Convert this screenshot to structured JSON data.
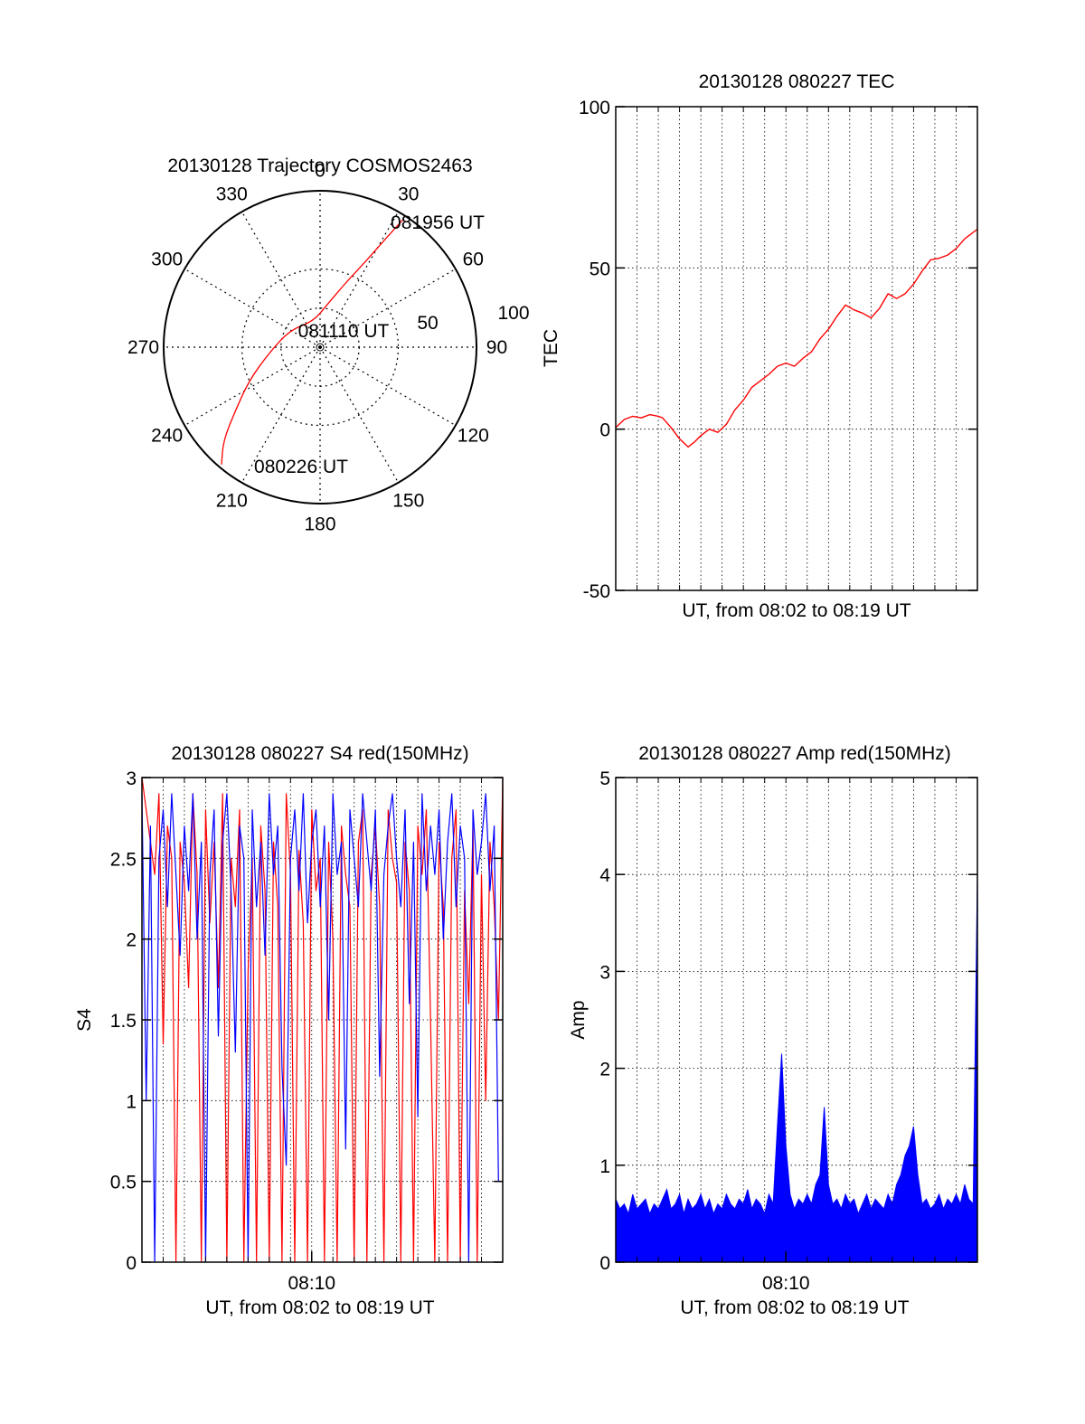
{
  "colors": {
    "red": "#ff0000",
    "blue": "#0000ff",
    "axis": "#000000",
    "grid": "#000000"
  },
  "chart_data": [
    {
      "id": "polar",
      "type": "scatter",
      "projection": "polar",
      "title": "20130128 Trajectory COSMOS2463",
      "azimuth_labels": [
        "0",
        "30",
        "60",
        "90",
        "120",
        "150",
        "180",
        "210",
        "240",
        "270",
        "300",
        "330"
      ],
      "radial_labels": [
        "50",
        "100"
      ],
      "series": [
        {
          "color": "#ff0000",
          "points": [
            {
              "az": 33,
              "r": 97
            },
            {
              "az": 31,
              "r": 80
            },
            {
              "az": 28,
              "r": 62
            },
            {
              "az": 22,
              "r": 45
            },
            {
              "az": 10,
              "r": 28
            },
            {
              "az": 345,
              "r": 17
            },
            {
              "az": 300,
              "r": 22
            },
            {
              "az": 265,
              "r": 32
            },
            {
              "az": 245,
              "r": 50
            },
            {
              "az": 233,
              "r": 68
            },
            {
              "az": 226,
              "r": 86
            },
            {
              "az": 220,
              "r": 98
            }
          ]
        }
      ],
      "annotations": [
        {
          "text": "081956 UT",
          "az": 35,
          "r": 92
        },
        {
          "text": "081110 UT",
          "az": 30,
          "r": 25
        },
        {
          "text": "080226 UT",
          "az": 210,
          "r": 84
        }
      ],
      "grid": true
    },
    {
      "id": "tec",
      "type": "line",
      "title": "20130128 080227 TEC",
      "xlabel": "UT, from 08:02 to 08:19 UT",
      "ylabel": "TEC",
      "xlim": [
        0,
        17
      ],
      "ylim": [
        -50,
        100
      ],
      "yticks": [
        "-50",
        "0",
        "50",
        "100"
      ],
      "grid": true,
      "series": [
        {
          "color": "#ff0000",
          "x": [
            0,
            0.4,
            0.8,
            1.2,
            1.6,
            2.0,
            2.2,
            2.6,
            3.0,
            3.4,
            3.7,
            4.0,
            4.4,
            4.8,
            5.2,
            5.6,
            6.0,
            6.4,
            6.8,
            7.2,
            7.6,
            8.0,
            8.4,
            8.8,
            9.2,
            9.6,
            10.0,
            10.4,
            10.8,
            11.2,
            11.6,
            12.0,
            12.4,
            12.8,
            13.2,
            13.6,
            14.0,
            14.4,
            14.8,
            15.2,
            15.6,
            16.0,
            16.4,
            17.0
          ],
          "y": [
            0.5,
            3,
            4,
            3.5,
            4.5,
            4,
            3.5,
            0.5,
            -3,
            -5.5,
            -4,
            -2,
            0,
            -1,
            1.5,
            6,
            9,
            13,
            15,
            17,
            19.5,
            20.5,
            19.5,
            22,
            24,
            28,
            31,
            35,
            38.5,
            37,
            36,
            34.5,
            37.5,
            42,
            40.5,
            42,
            45,
            49,
            52.5,
            53,
            54,
            56,
            59,
            62
          ]
        }
      ]
    },
    {
      "id": "s4",
      "type": "line",
      "title": "20130128 080227 S4 red(150MHz)",
      "xlabel": "UT, from 08:02 to 08:19 UT",
      "ylabel": "S4",
      "xlim": [
        0,
        17
      ],
      "ylim": [
        0,
        3
      ],
      "xticks": [
        "08:10"
      ],
      "yticks": [
        "0",
        "0.5",
        "1",
        "1.5",
        "2",
        "2.5",
        "3"
      ],
      "grid": true,
      "series": [
        {
          "color": "#ff0000",
          "x": [
            0.0,
            0.2,
            0.4,
            0.6,
            0.8,
            1.0,
            1.2,
            1.4,
            1.6,
            1.8,
            2.0,
            2.2,
            2.4,
            2.6,
            2.8,
            3.0,
            3.2,
            3.4,
            3.6,
            3.8,
            4.0,
            4.2,
            4.4,
            4.6,
            4.8,
            5.0,
            5.2,
            5.4,
            5.6,
            5.8,
            6.0,
            6.2,
            6.4,
            6.6,
            6.8,
            7.0,
            7.2,
            7.4,
            7.6,
            7.8,
            8.0,
            8.2,
            8.4,
            8.6,
            8.8,
            9.0,
            9.2,
            9.4,
            9.6,
            9.8,
            10.0,
            10.2,
            10.4,
            10.6,
            10.8,
            11.0,
            11.2,
            11.4,
            11.6,
            11.8,
            12.0,
            12.2,
            12.4,
            12.6,
            12.8,
            13.0,
            13.2,
            13.4,
            13.6,
            13.8,
            14.0,
            14.2,
            14.4,
            14.6,
            14.8,
            15.0,
            15.2,
            15.4,
            15.6,
            15.8,
            16.0,
            16.2,
            16.4,
            16.6,
            16.8,
            17.0
          ],
          "y": [
            3.0,
            2.8,
            2.6,
            2.4,
            2.9,
            1.35,
            2.7,
            2.5,
            0.0,
            2.6,
            2.35,
            1.7,
            2.9,
            2.4,
            0.0,
            2.8,
            2.1,
            2.6,
            1.7,
            2.9,
            0.0,
            2.5,
            2.2,
            2.8,
            0.0,
            1.8,
            2.5,
            0.0,
            2.7,
            2.3,
            0.0,
            2.6,
            2.2,
            0.0,
            2.9,
            2.4,
            0.0,
            2.55,
            2.1,
            0.0,
            2.8,
            2.3,
            2.5,
            0.0,
            2.6,
            2.0,
            0.0,
            2.7,
            2.4,
            2.2,
            0.0,
            2.6,
            2.8,
            0.0,
            2.4,
            2.7,
            2.2,
            0.0,
            2.8,
            2.5,
            2.35,
            0.0,
            2.6,
            2.3,
            0.0,
            2.7,
            2.4,
            2.8,
            1.5,
            0.0,
            2.6,
            2.2,
            0.0,
            2.5,
            2.8,
            0.0,
            2.3,
            1.6,
            2.7,
            0.0,
            2.4,
            1.0,
            2.6,
            2.2,
            1.5,
            3.0
          ]
        },
        {
          "color": "#0000ff",
          "x": [
            0.0,
            0.2,
            0.4,
            0.6,
            0.8,
            1.0,
            1.2,
            1.4,
            1.6,
            1.8,
            2.0,
            2.2,
            2.4,
            2.6,
            2.8,
            3.0,
            3.2,
            3.4,
            3.6,
            3.8,
            4.0,
            4.2,
            4.4,
            4.6,
            4.8,
            5.0,
            5.2,
            5.4,
            5.6,
            5.8,
            6.0,
            6.2,
            6.4,
            6.6,
            6.8,
            7.0,
            7.2,
            7.4,
            7.6,
            7.8,
            8.0,
            8.2,
            8.4,
            8.6,
            8.8,
            9.0,
            9.2,
            9.4,
            9.6,
            9.8,
            10.0,
            10.2,
            10.4,
            10.6,
            10.8,
            11.0,
            11.2,
            11.4,
            11.6,
            11.8,
            12.0,
            12.2,
            12.4,
            12.6,
            12.8,
            13.0,
            13.2,
            13.4,
            13.6,
            13.8,
            14.0,
            14.2,
            14.4,
            14.6,
            14.8,
            15.0,
            15.2,
            15.4,
            15.6,
            15.8,
            16.0,
            16.2,
            16.4,
            16.6,
            16.8,
            17.0
          ],
          "y": [
            2.9,
            1.0,
            2.7,
            0.0,
            2.5,
            2.8,
            2.2,
            2.9,
            2.4,
            1.9,
            2.7,
            2.3,
            2.9,
            2.0,
            2.6,
            0.0,
            2.4,
            2.8,
            1.4,
            2.6,
            2.9,
            2.3,
            1.3,
            2.7,
            2.5,
            0.0,
            2.8,
            2.2,
            2.6,
            1.9,
            2.9,
            2.4,
            2.7,
            1.2,
            0.6,
            2.5,
            2.8,
            2.3,
            2.9,
            2.1,
            2.6,
            2.8,
            2.2,
            2.7,
            1.5,
            2.9,
            2.4,
            2.6,
            0.7,
            2.8,
            2.5,
            2.2,
            2.9,
            2.6,
            2.3,
            2.8,
            1.15,
            2.4,
            2.7,
            2.9,
            2.5,
            2.2,
            2.8,
            1.6,
            2.6,
            0.9,
            2.9,
            2.3,
            2.7,
            2.4,
            2.8,
            2.0,
            2.6,
            2.9,
            2.2,
            2.7,
            2.5,
            0.0,
            2.8,
            2.4,
            2.6,
            2.9,
            2.3,
            2.7,
            0.5,
            0.5
          ]
        }
      ]
    },
    {
      "id": "amp",
      "type": "line",
      "title": "20130128 080227 Amp red(150MHz)",
      "xlabel": "UT, from 08:02 to 08:19 UT",
      "ylabel": "Amp",
      "xlim": [
        0,
        17
      ],
      "ylim": [
        0,
        5
      ],
      "xticks": [
        "08:10"
      ],
      "yticks": [
        "0",
        "1",
        "2",
        "3",
        "4",
        "5"
      ],
      "grid": true,
      "series": [
        {
          "color": "#0000ff",
          "x": [
            0.0,
            0.2,
            0.4,
            0.6,
            0.8,
            1.0,
            1.2,
            1.4,
            1.6,
            1.8,
            2.0,
            2.2,
            2.4,
            2.6,
            2.8,
            3.0,
            3.2,
            3.4,
            3.6,
            3.8,
            4.0,
            4.2,
            4.4,
            4.6,
            4.8,
            5.0,
            5.2,
            5.4,
            5.6,
            5.8,
            6.0,
            6.2,
            6.4,
            6.6,
            6.8,
            7.0,
            7.2,
            7.4,
            7.6,
            7.8,
            8.0,
            8.2,
            8.4,
            8.6,
            8.8,
            9.0,
            9.2,
            9.4,
            9.6,
            9.8,
            10.0,
            10.2,
            10.4,
            10.6,
            10.8,
            11.0,
            11.2,
            11.4,
            11.6,
            11.8,
            12.0,
            12.2,
            12.4,
            12.6,
            12.8,
            13.0,
            13.2,
            13.4,
            13.6,
            13.8,
            14.0,
            14.2,
            14.4,
            14.6,
            14.8,
            15.0,
            15.2,
            15.4,
            15.6,
            15.8,
            16.0,
            16.2,
            16.4,
            16.6,
            16.8,
            17.0
          ],
          "y": [
            0.65,
            0.55,
            0.6,
            0.5,
            0.7,
            0.55,
            0.6,
            0.65,
            0.5,
            0.6,
            0.55,
            0.65,
            0.75,
            0.55,
            0.6,
            0.7,
            0.5,
            0.65,
            0.55,
            0.6,
            0.7,
            0.55,
            0.65,
            0.5,
            0.6,
            0.55,
            0.7,
            0.6,
            0.55,
            0.65,
            0.6,
            0.75,
            0.55,
            0.65,
            0.6,
            0.5,
            0.7,
            0.6,
            1.4,
            2.15,
            1.2,
            0.7,
            0.55,
            0.65,
            0.6,
            0.7,
            0.6,
            0.8,
            0.9,
            1.6,
            0.8,
            0.6,
            0.65,
            0.55,
            0.7,
            0.6,
            0.65,
            0.5,
            0.6,
            0.7,
            0.55,
            0.65,
            0.6,
            0.55,
            0.7,
            0.6,
            0.8,
            0.9,
            1.1,
            1.2,
            1.4,
            0.9,
            0.6,
            0.65,
            0.55,
            0.6,
            0.7,
            0.55,
            0.65,
            0.6,
            0.7,
            0.6,
            0.8,
            0.65,
            0.6,
            4.0
          ]
        }
      ]
    }
  ]
}
